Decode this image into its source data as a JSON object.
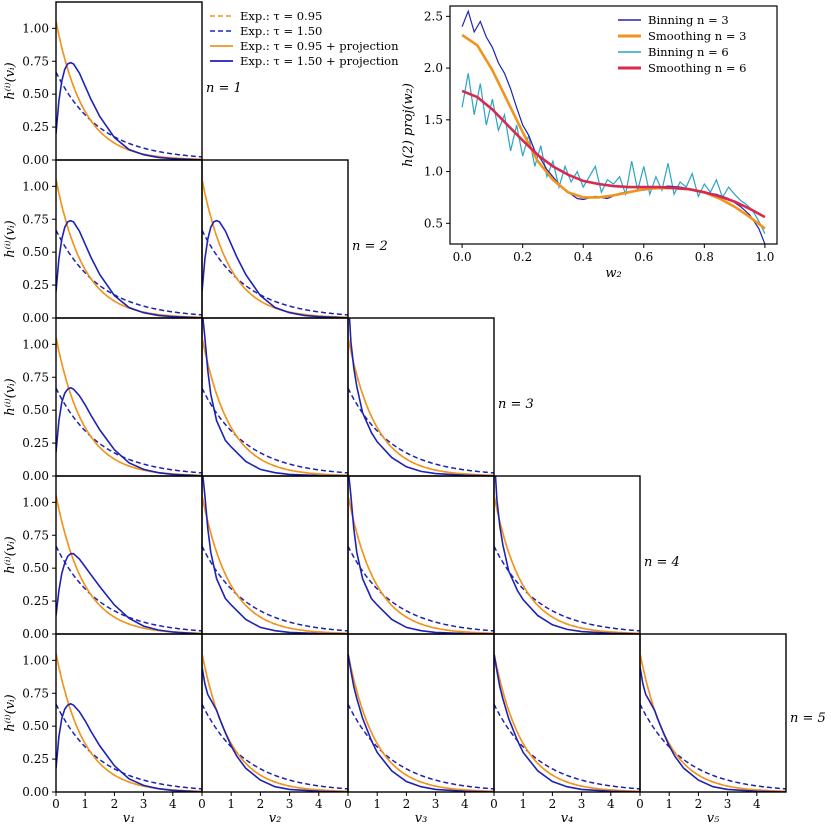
{
  "chart_data": {
    "type": "line",
    "corner": {
      "rows": [
        {
          "n": 1,
          "label": "n = 1"
        },
        {
          "n": 2,
          "label": "n = 2"
        },
        {
          "n": 3,
          "label": "n = 3"
        },
        {
          "n": 4,
          "label": "n = 4"
        },
        {
          "n": 5,
          "label": "n = 5"
        }
      ],
      "xlabels": [
        "v₁",
        "v₂",
        "v₃",
        "v₄",
        "v₅"
      ],
      "ylabel": "h⁽ⁱ⁾(vᵢ)",
      "xlim": [
        0,
        5
      ],
      "ylim": [
        0,
        1.2
      ],
      "xticks": [
        0,
        1,
        2,
        3,
        4
      ],
      "yticks": [
        "0.00",
        "0.25",
        "0.50",
        "0.75",
        "1.00"
      ],
      "legend": [
        {
          "name": "Exp.: τ = 0.95",
          "color": "#f0941e",
          "style": "dashed"
        },
        {
          "name": "Exp.: τ = 1.50",
          "color": "#1e22b4",
          "style": "dashed"
        },
        {
          "name": "Exp.: τ = 0.95 + projection",
          "color": "#f0941e",
          "style": "solid"
        },
        {
          "name": "Exp.: τ = 1.50 + projection",
          "color": "#1e22b4",
          "style": "solid"
        }
      ],
      "series_exp_tau_0_95": {
        "tau": 0.95,
        "x": [
          0,
          0.25,
          0.5,
          1,
          1.5,
          2,
          3,
          4,
          5
        ],
        "y": [
          1.053,
          0.811,
          0.624,
          0.369,
          0.218,
          0.129,
          0.045,
          0.016,
          0.005
        ]
      },
      "series_exp_tau_1_50": {
        "tau": 1.5,
        "x": [
          0,
          0.25,
          0.5,
          1,
          1.5,
          2,
          3,
          4,
          5
        ],
        "y": [
          0.667,
          0.564,
          0.478,
          0.342,
          0.245,
          0.176,
          0.09,
          0.046,
          0.024
        ]
      },
      "projection_first_column": [
        {
          "n": 1,
          "x": [
            0,
            0.1,
            0.2,
            0.3,
            0.4,
            0.5,
            0.6,
            0.8,
            1.0,
            1.2,
            1.5,
            2.0,
            2.5,
            3.0,
            3.5,
            4.0,
            4.5,
            5.0
          ],
          "y": [
            0.2,
            0.45,
            0.6,
            0.69,
            0.73,
            0.74,
            0.73,
            0.66,
            0.56,
            0.46,
            0.33,
            0.17,
            0.08,
            0.04,
            0.02,
            0.01,
            0.005,
            0.0
          ]
        },
        {
          "n": 2,
          "x": [
            0,
            0.1,
            0.2,
            0.3,
            0.4,
            0.5,
            0.6,
            0.8,
            1.0,
            1.2,
            1.5,
            2.0,
            2.5,
            3.0,
            3.5,
            4.0,
            4.5,
            5.0
          ],
          "y": [
            0.2,
            0.45,
            0.6,
            0.69,
            0.73,
            0.74,
            0.73,
            0.66,
            0.56,
            0.46,
            0.33,
            0.17,
            0.08,
            0.04,
            0.02,
            0.01,
            0.005,
            0.0
          ]
        },
        {
          "n": 3,
          "x": [
            0,
            0.1,
            0.2,
            0.3,
            0.4,
            0.5,
            0.6,
            0.8,
            1.0,
            1.2,
            1.5,
            2.0,
            2.5,
            3.0,
            3.5,
            4.0,
            4.5,
            5.0
          ],
          "y": [
            0.18,
            0.42,
            0.56,
            0.63,
            0.66,
            0.67,
            0.66,
            0.61,
            0.54,
            0.46,
            0.35,
            0.2,
            0.1,
            0.05,
            0.025,
            0.012,
            0.006,
            0.0
          ]
        },
        {
          "n": 4,
          "x": [
            0,
            0.1,
            0.2,
            0.3,
            0.4,
            0.5,
            0.6,
            0.8,
            1.0,
            1.2,
            1.5,
            2.0,
            2.5,
            3.0,
            3.5,
            4.0,
            4.5,
            5.0
          ],
          "y": [
            0.14,
            0.33,
            0.46,
            0.54,
            0.59,
            0.61,
            0.61,
            0.57,
            0.51,
            0.45,
            0.36,
            0.22,
            0.12,
            0.06,
            0.03,
            0.015,
            0.007,
            0.0
          ]
        },
        {
          "n": 5,
          "x": [
            0,
            0.1,
            0.2,
            0.3,
            0.4,
            0.5,
            0.6,
            0.8,
            1.0,
            1.2,
            1.5,
            2.0,
            2.5,
            3.0,
            3.5,
            4.0,
            4.5,
            5.0
          ],
          "y": [
            0.18,
            0.42,
            0.56,
            0.63,
            0.66,
            0.67,
            0.66,
            0.61,
            0.54,
            0.46,
            0.35,
            0.2,
            0.1,
            0.05,
            0.025,
            0.012,
            0.006,
            0.0
          ]
        }
      ],
      "projection_first_column_orange_note": "",
      "projection_second_column_n2": {
        "x": [
          0,
          0.1,
          0.2,
          0.3,
          0.4,
          0.5,
          0.6,
          0.8,
          1.0,
          1.2,
          1.5,
          2.0,
          2.5,
          3.0,
          3.5,
          4.0,
          4.5,
          5.0
        ],
        "y": [
          0.2,
          0.45,
          0.6,
          0.69,
          0.73,
          0.74,
          0.73,
          0.66,
          0.56,
          0.46,
          0.33,
          0.17,
          0.08,
          0.04,
          0.02,
          0.01,
          0.005,
          0.0
        ]
      },
      "projection_other": {
        "blue_diag_n3": {
          "x": [
            0.02,
            0.05,
            0.1,
            0.2,
            0.3,
            0.5,
            0.8,
            1.0,
            1.5,
            2.0,
            2.5,
            3.0,
            4.0,
            5.0
          ],
          "y": [
            1.4,
            1.2,
            1.02,
            0.82,
            0.68,
            0.48,
            0.33,
            0.26,
            0.14,
            0.07,
            0.035,
            0.018,
            0.005,
            0.0
          ]
        },
        "blue_offdiag": {
          "x": [
            0.03,
            0.1,
            0.2,
            0.3,
            0.5,
            0.8,
            1.0,
            1.5,
            2.0,
            2.5,
            3.0,
            4.0,
            5.0
          ],
          "y": [
            1.3,
            1.05,
            0.8,
            0.62,
            0.42,
            0.27,
            0.22,
            0.11,
            0.05,
            0.025,
            0.012,
            0.003,
            0.0
          ]
        },
        "blue_n5_late": {
          "x": [
            0,
            0.1,
            0.2,
            0.3,
            0.5,
            0.8,
            1.0,
            1.5,
            2.0,
            2.5,
            3.0,
            4.0,
            5.0
          ],
          "y": [
            1.05,
            0.92,
            0.8,
            0.71,
            0.56,
            0.39,
            0.3,
            0.16,
            0.08,
            0.04,
            0.02,
            0.005,
            0.0
          ]
        },
        "blue_shoulder": {
          "x": [
            0,
            0.1,
            0.2,
            0.3,
            0.4,
            0.5,
            0.6,
            0.8,
            1.0,
            1.2,
            1.5,
            2.0,
            2.5,
            3.0,
            4.0,
            5.0
          ],
          "y": [
            0.95,
            0.82,
            0.74,
            0.7,
            0.66,
            0.62,
            0.56,
            0.45,
            0.35,
            0.27,
            0.18,
            0.09,
            0.04,
            0.02,
            0.005,
            0.0
          ]
        }
      }
    },
    "inset": {
      "xlabel": "w₂",
      "ylabel": "h(2) proj(w₂)",
      "xlim": [
        -0.04,
        1.04
      ],
      "ylim": [
        0.3,
        2.6
      ],
      "xticks": [
        "0.0",
        "0.2",
        "0.4",
        "0.6",
        "0.8",
        "1.0"
      ],
      "yticks": [
        "0.5",
        "1.0",
        "1.5",
        "2.0",
        "2.5"
      ],
      "legend": [
        {
          "name": "Binning n = 3",
          "color": "#1e22b4",
          "width": 1.5
        },
        {
          "name": "Smoothing n = 3",
          "color": "#f0941e",
          "width": 3
        },
        {
          "name": "Binning n = 6",
          "color": "#2ba3c4",
          "width": 1.5
        },
        {
          "name": "Smoothing n = 6",
          "color": "#d8294f",
          "width": 3
        }
      ],
      "smoothing_n3": {
        "x": [
          0,
          0.05,
          0.1,
          0.15,
          0.2,
          0.25,
          0.3,
          0.35,
          0.4,
          0.45,
          0.5,
          0.55,
          0.6,
          0.65,
          0.7,
          0.75,
          0.8,
          0.85,
          0.9,
          0.95,
          1.0
        ],
        "y": [
          2.32,
          2.22,
          1.98,
          1.68,
          1.38,
          1.1,
          0.92,
          0.8,
          0.75,
          0.75,
          0.77,
          0.8,
          0.83,
          0.84,
          0.84,
          0.83,
          0.8,
          0.74,
          0.66,
          0.56,
          0.45
        ]
      },
      "smoothing_n6": {
        "x": [
          0,
          0.05,
          0.1,
          0.15,
          0.2,
          0.25,
          0.3,
          0.35,
          0.4,
          0.45,
          0.5,
          0.55,
          0.6,
          0.65,
          0.7,
          0.75,
          0.8,
          0.85,
          0.9,
          0.95,
          1.0
        ],
        "y": [
          1.78,
          1.72,
          1.6,
          1.45,
          1.3,
          1.16,
          1.05,
          0.97,
          0.91,
          0.88,
          0.86,
          0.85,
          0.85,
          0.85,
          0.84,
          0.83,
          0.8,
          0.76,
          0.71,
          0.64,
          0.56
        ]
      },
      "binning_n3": {
        "x": [
          0,
          0.02,
          0.04,
          0.06,
          0.08,
          0.1,
          0.12,
          0.14,
          0.16,
          0.18,
          0.2,
          0.22,
          0.24,
          0.26,
          0.28,
          0.3,
          0.32,
          0.34,
          0.36,
          0.38,
          0.4,
          0.44,
          0.48,
          0.52,
          0.56,
          0.6,
          0.64,
          0.68,
          0.72,
          0.76,
          0.8,
          0.84,
          0.88,
          0.92,
          0.95,
          0.98,
          1.0
        ],
        "y": [
          2.4,
          2.55,
          2.35,
          2.45,
          2.3,
          2.2,
          2.05,
          1.95,
          1.8,
          1.62,
          1.45,
          1.35,
          1.2,
          1.12,
          1.02,
          0.95,
          0.88,
          0.82,
          0.78,
          0.74,
          0.73,
          0.76,
          0.74,
          0.79,
          0.81,
          0.82,
          0.84,
          0.86,
          0.85,
          0.83,
          0.8,
          0.78,
          0.74,
          0.66,
          0.58,
          0.45,
          0.3
        ]
      },
      "binning_n6": {
        "x": [
          0,
          0.02,
          0.04,
          0.06,
          0.08,
          0.1,
          0.12,
          0.14,
          0.16,
          0.18,
          0.2,
          0.22,
          0.24,
          0.26,
          0.28,
          0.3,
          0.32,
          0.34,
          0.36,
          0.38,
          0.4,
          0.42,
          0.44,
          0.46,
          0.48,
          0.5,
          0.52,
          0.54,
          0.56,
          0.58,
          0.6,
          0.62,
          0.64,
          0.66,
          0.68,
          0.7,
          0.72,
          0.74,
          0.76,
          0.78,
          0.8,
          0.82,
          0.84,
          0.86,
          0.88,
          0.9,
          0.92,
          0.94,
          0.96,
          0.98,
          1.0
        ],
        "y": [
          1.62,
          1.95,
          1.55,
          1.85,
          1.45,
          1.7,
          1.4,
          1.55,
          1.2,
          1.45,
          1.15,
          1.35,
          1.05,
          1.25,
          0.95,
          1.1,
          0.85,
          1.05,
          0.9,
          1.0,
          0.85,
          0.95,
          1.05,
          0.8,
          0.92,
          0.88,
          0.95,
          0.78,
          1.1,
          0.82,
          1.05,
          0.78,
          0.95,
          0.82,
          1.08,
          0.78,
          0.9,
          0.85,
          0.98,
          0.76,
          0.88,
          0.8,
          0.92,
          0.75,
          0.85,
          0.78,
          0.72,
          0.68,
          0.62,
          0.52,
          0.4
        ]
      }
    }
  }
}
